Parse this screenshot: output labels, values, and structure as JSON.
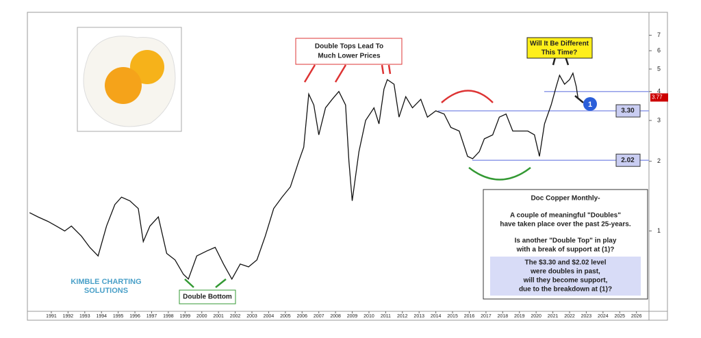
{
  "chart_data": {
    "type": "line",
    "log_y": true,
    "color": "#111111",
    "x": [
      1989.7,
      1990.2,
      1990.8,
      1991.3,
      1991.8,
      1992.2,
      1992.8,
      1993.3,
      1993.8,
      1994.3,
      1994.8,
      1995.2,
      1995.7,
      1996.2,
      1996.5,
      1996.9,
      1997.4,
      1997.9,
      1998.4,
      1998.9,
      1999.2,
      1999.7,
      2000.3,
      2000.8,
      2001.3,
      2001.8,
      2002.3,
      2002.8,
      2003.3,
      2003.8,
      2004.3,
      2004.8,
      2005.3,
      2005.8,
      2006.1,
      2006.4,
      2006.7,
      2007.0,
      2007.4,
      2007.8,
      2008.2,
      2008.6,
      2008.8,
      2009.0,
      2009.4,
      2009.8,
      2010.3,
      2010.6,
      2010.9,
      2011.1,
      2011.5,
      2011.8,
      2012.2,
      2012.6,
      2013.1,
      2013.5,
      2014.0,
      2014.5,
      2014.9,
      2015.4,
      2015.9,
      2016.2,
      2016.6,
      2016.9,
      2017.4,
      2017.8,
      2018.2,
      2018.6,
      2019.0,
      2019.5,
      2019.9,
      2020.2,
      2020.5,
      2020.9,
      2021.2,
      2021.4,
      2021.7,
      2022.0,
      2022.2,
      2022.4,
      2022.5
    ],
    "series": [
      {
        "color": "#111111",
        "values": [
          1.2,
          1.15,
          1.1,
          1.05,
          1.0,
          1.05,
          0.95,
          0.85,
          0.78,
          1.05,
          1.3,
          1.4,
          1.35,
          1.25,
          0.9,
          1.05,
          1.15,
          0.8,
          0.75,
          0.65,
          0.62,
          0.78,
          0.82,
          0.85,
          0.72,
          0.62,
          0.72,
          0.7,
          0.75,
          0.95,
          1.25,
          1.4,
          1.55,
          2.0,
          2.3,
          3.9,
          3.5,
          2.6,
          3.4,
          3.7,
          4.0,
          3.5,
          2.0,
          1.35,
          2.2,
          3.0,
          3.4,
          2.9,
          4.1,
          4.5,
          4.3,
          3.1,
          3.8,
          3.4,
          3.7,
          3.1,
          3.3,
          3.2,
          2.8,
          2.7,
          2.1,
          2.05,
          2.2,
          2.5,
          2.6,
          3.1,
          3.2,
          2.7,
          2.7,
          2.7,
          2.6,
          2.1,
          2.9,
          3.5,
          4.2,
          4.7,
          4.3,
          4.5,
          4.8,
          4.2,
          3.77
        ]
      }
    ],
    "xlim": [
      1989.65,
      2026.75
    ],
    "xticks": [
      1991,
      1992,
      1993,
      1994,
      1995,
      1996,
      1997,
      1998,
      1999,
      2000,
      2001,
      2002,
      2003,
      2004,
      2005,
      2006,
      2007,
      2008,
      2009,
      2010,
      2011,
      2012,
      2013,
      2014,
      2015,
      2016,
      2017,
      2018,
      2019,
      2020,
      2021,
      2022,
      2023,
      2024,
      2025,
      2026
    ],
    "ylim": [
      0.45,
      8.1
    ],
    "yticks": [
      1,
      2,
      3,
      4,
      5,
      6,
      7
    ],
    "levels": [
      {
        "value": 3.3,
        "label": "3.30"
      },
      {
        "value": 2.02,
        "label": "2.02"
      }
    ],
    "breakdown_level": 4,
    "price_tag": {
      "value": 3.77,
      "label": "3.77"
    },
    "marker": "1",
    "annotations": {
      "double_tops": [
        "Double Tops Lead To",
        "Much Lower Prices"
      ],
      "different": [
        "Will It Be Different",
        "This Time?"
      ],
      "double_bottom": "Double Bottom",
      "logo": [
        "KIMBLE CHARTING",
        "SOLUTIONS"
      ]
    },
    "textbox": {
      "title": "Doc Copper Monthly-",
      "lines": [
        "A couple of meaningful \"Doubles\"",
        "have taken place over the past 25-years.",
        "Is another \"Double Top\" in play",
        "with a break of support at (1)?"
      ],
      "highlight": [
        "The $3.30 and $2.02 level",
        "were doubles in past,",
        "will they become support,",
        "due to the breakdown at (1)?"
      ]
    }
  }
}
